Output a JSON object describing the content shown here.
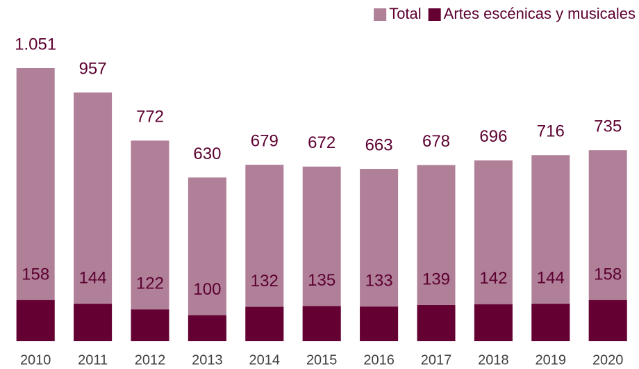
{
  "chart_data": {
    "type": "bar",
    "categories": [
      "2010",
      "2011",
      "2012",
      "2013",
      "2014",
      "2015",
      "2016",
      "2017",
      "2018",
      "2019",
      "2020"
    ],
    "series": [
      {
        "name": "Total",
        "color": "#b07f98",
        "values": [
          1051,
          957,
          772,
          630,
          679,
          672,
          663,
          678,
          696,
          716,
          735
        ],
        "value_labels": [
          "1.051",
          "957",
          "772",
          "630",
          "679",
          "672",
          "663",
          "678",
          "696",
          "716",
          "735"
        ]
      },
      {
        "name": "Artes escénicas y musicales",
        "color": "#640032",
        "values": [
          158,
          144,
          122,
          100,
          132,
          135,
          133,
          139,
          142,
          144,
          158
        ]
      }
    ],
    "legend": "top-right"
  }
}
